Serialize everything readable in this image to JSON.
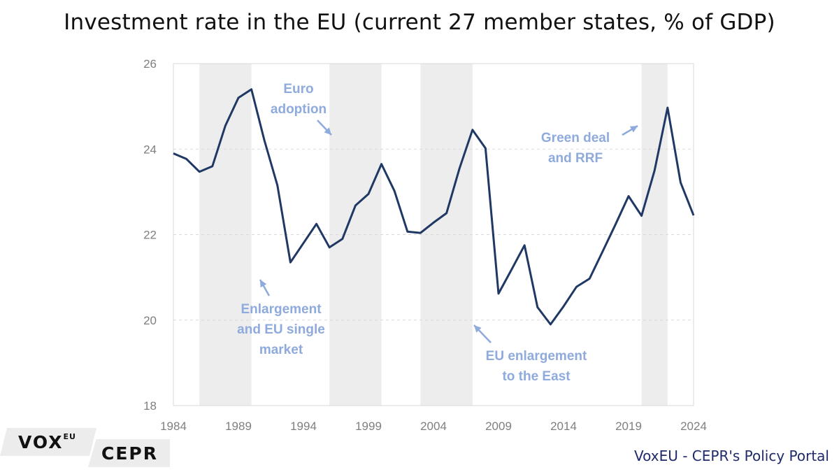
{
  "chart_data": {
    "type": "line",
    "title": "Investment rate in the EU (current 27 member states, % of GDP)",
    "xlabel": "",
    "ylabel": "",
    "xlim": [
      1984,
      2024
    ],
    "ylim": [
      18,
      26
    ],
    "x_ticks": [
      "1984",
      "1989",
      "1994",
      "1999",
      "2004",
      "2009",
      "2014",
      "2019",
      "2024"
    ],
    "y_ticks": [
      "18",
      "20",
      "22",
      "24",
      "26"
    ],
    "grid": "horizontal dashed",
    "series": [
      {
        "name": "Investment rate",
        "color": "#203864",
        "x": [
          1984,
          1985,
          1986,
          1987,
          1988,
          1989,
          1990,
          1991,
          1992,
          1993,
          1994,
          1995,
          1996,
          1997,
          1998,
          1999,
          2000,
          2001,
          2002,
          2003,
          2004,
          2005,
          2006,
          2007,
          2008,
          2009,
          2010,
          2011,
          2012,
          2013,
          2014,
          2015,
          2016,
          2017,
          2018,
          2019,
          2020,
          2021,
          2022,
          2023,
          2024
        ],
        "values": [
          23.9,
          23.77,
          23.47,
          23.6,
          24.55,
          25.2,
          25.4,
          24.2,
          23.15,
          21.35,
          21.8,
          22.25,
          21.7,
          21.9,
          22.68,
          22.95,
          23.65,
          23.02,
          22.07,
          22.04,
          22.28,
          22.5,
          23.55,
          24.45,
          24.02,
          20.62,
          21.18,
          21.75,
          20.3,
          19.9,
          20.32,
          20.78,
          20.97,
          21.6,
          22.24,
          22.9,
          22.44,
          23.5,
          24.97,
          23.22,
          22.45
        ]
      }
    ],
    "shaded_periods": [
      {
        "start": 1986,
        "end": 1990
      },
      {
        "start": 1996,
        "end": 2000
      },
      {
        "start": 2003,
        "end": 2007
      },
      {
        "start": 2020,
        "end": 2022
      }
    ],
    "annotations": [
      {
        "lines": [
          "Euro",
          "adoption"
        ]
      },
      {
        "lines": [
          "Enlargement",
          "and EU single",
          "market"
        ]
      },
      {
        "lines": [
          "EU enlargement",
          "to the East"
        ]
      },
      {
        "lines": [
          "Green deal",
          "and RRF"
        ]
      }
    ]
  },
  "footer": {
    "logo_vox": "VOX",
    "logo_vox_sup": "EU",
    "logo_cepr": "CEPR",
    "portal": "VoxEU - CEPR's Policy Portal"
  }
}
